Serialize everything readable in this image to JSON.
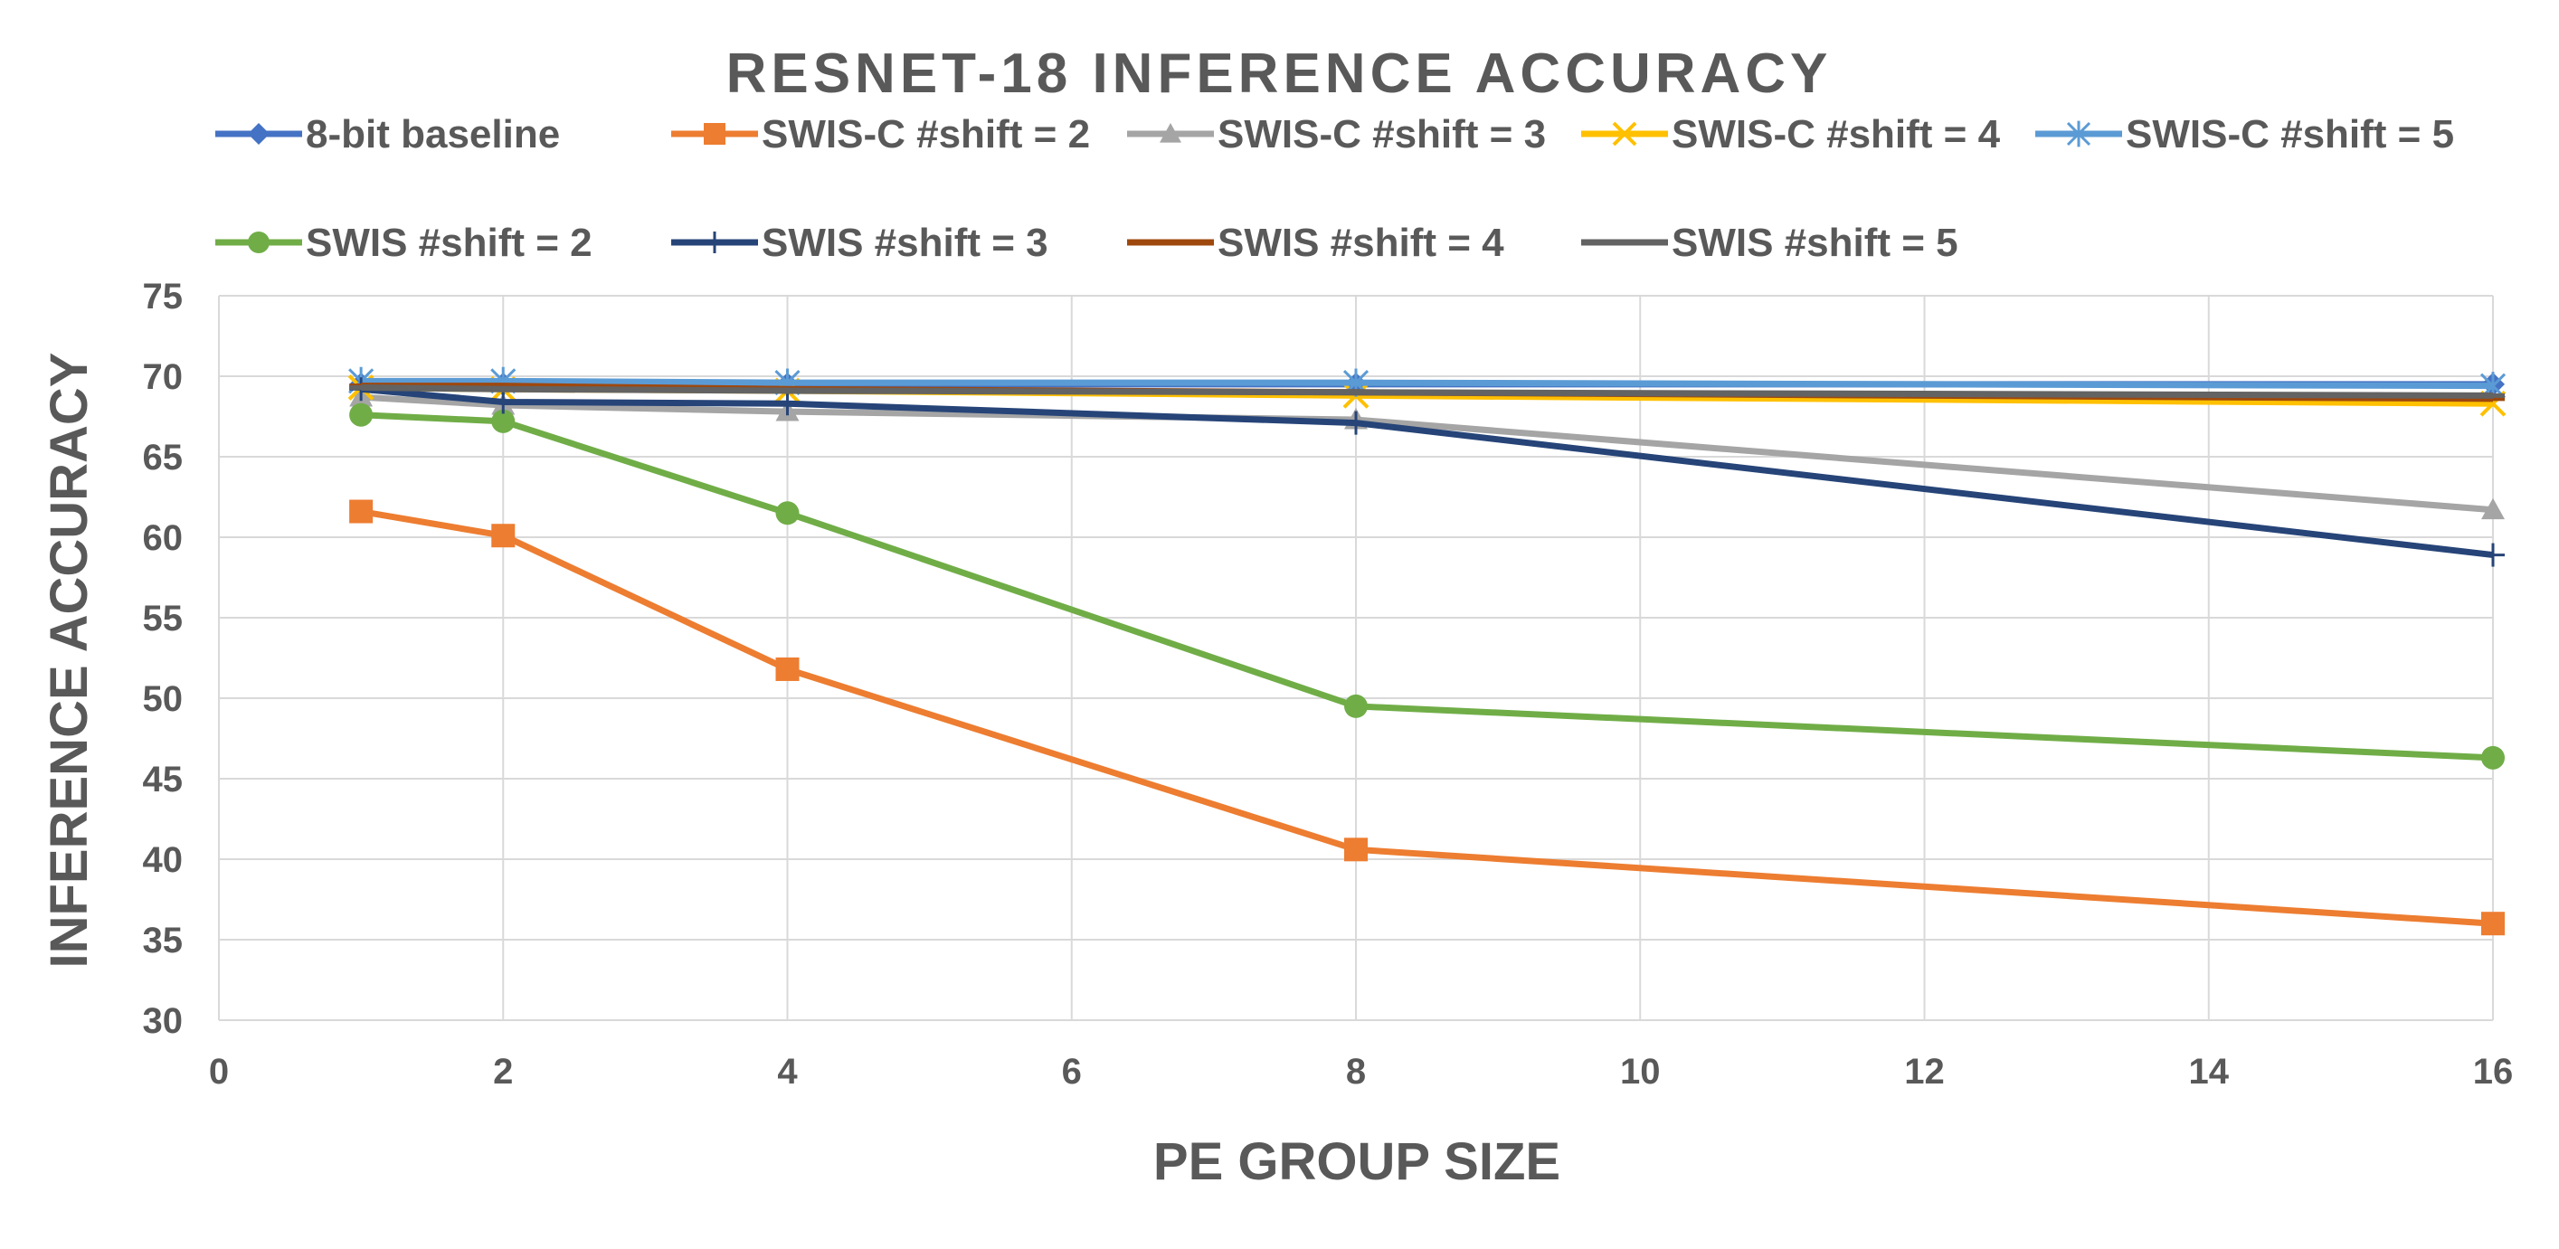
{
  "chart_data": {
    "type": "line",
    "title": "RESNET-18 INFERENCE ACCURACY",
    "xlabel": "PE GROUP SIZE",
    "ylabel": "INFERENCE ACCURACY",
    "xlim": [
      0,
      16
    ],
    "ylim": [
      30,
      75
    ],
    "xticks": [
      0,
      2,
      4,
      6,
      8,
      10,
      12,
      14,
      16
    ],
    "yticks": [
      30,
      35,
      40,
      45,
      50,
      55,
      60,
      65,
      70,
      75
    ],
    "grid": true,
    "legend_position": "top",
    "x": [
      1,
      2,
      4,
      8,
      16
    ],
    "series": [
      {
        "name": "8-bit baseline",
        "color": "#4472c4",
        "marker": "diamond",
        "values": [
          69.5,
          69.5,
          69.5,
          69.5,
          69.5
        ]
      },
      {
        "name": "SWIS-C #shift = 2",
        "color": "#ed7d31",
        "marker": "square",
        "values": [
          61.6,
          60.1,
          51.8,
          40.6,
          36.0
        ]
      },
      {
        "name": "SWIS-C #shift = 3",
        "color": "#a5a5a5",
        "marker": "triangle",
        "values": [
          68.7,
          68.2,
          67.8,
          67.3,
          61.7
        ]
      },
      {
        "name": "SWIS-C #shift = 4",
        "color": "#ffc000",
        "marker": "x",
        "values": [
          69.3,
          69.2,
          69.1,
          68.8,
          68.3
        ]
      },
      {
        "name": "SWIS-C #shift = 5",
        "color": "#5b9bd5",
        "marker": "star",
        "values": [
          69.7,
          69.7,
          69.6,
          69.6,
          69.4
        ]
      },
      {
        "name": "SWIS #shift = 2",
        "color": "#70ad47",
        "marker": "circle",
        "values": [
          67.6,
          67.2,
          61.5,
          49.5,
          46.3
        ]
      },
      {
        "name": "SWIS #shift = 3",
        "color": "#264478",
        "marker": "plus",
        "values": [
          69.2,
          68.4,
          68.3,
          67.1,
          58.9
        ]
      },
      {
        "name": "SWIS #shift = 4",
        "color": "#9e480e",
        "marker": "dash",
        "values": [
          69.4,
          69.4,
          69.2,
          69.0,
          68.6
        ]
      },
      {
        "name": "SWIS #shift = 5",
        "color": "#636363",
        "marker": "dash",
        "values": [
          69.3,
          69.2,
          69.1,
          69.0,
          68.8
        ]
      }
    ]
  }
}
